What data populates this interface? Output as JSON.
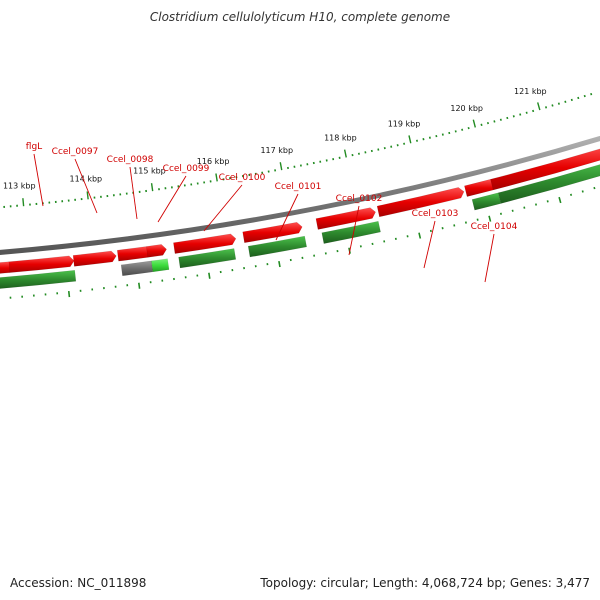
{
  "title": "Clostridium cellulolyticum H10, complete genome",
  "footer": {
    "accession": "Accession: NC_011898",
    "summary": "Topology: circular; Length: 4,068,724 bp; Genes: 3,477"
  },
  "colors": {
    "cds_forward": "#e60000",
    "cds_reverse": "#2e8b2e",
    "pseudo": "#707070",
    "rna": "#3ddc3d",
    "label": "#d00000",
    "backbone": "#7a7a7a",
    "tick": "#228b22"
  },
  "gene_labels": [
    "flgL",
    "Ccel_0097",
    "Ccel_0098",
    "Ccel_0099",
    "Ccel_0100",
    "Ccel_0101",
    "Ccel_0102",
    "Ccel_0103",
    "Ccel_0104"
  ],
  "scale_labels": [
    "113 kbp",
    "114 kbp",
    "115 kbp",
    "116 kbp",
    "117 kbp",
    "118 kbp",
    "119 kbp",
    "120 kbp",
    "121 kbp"
  ]
}
